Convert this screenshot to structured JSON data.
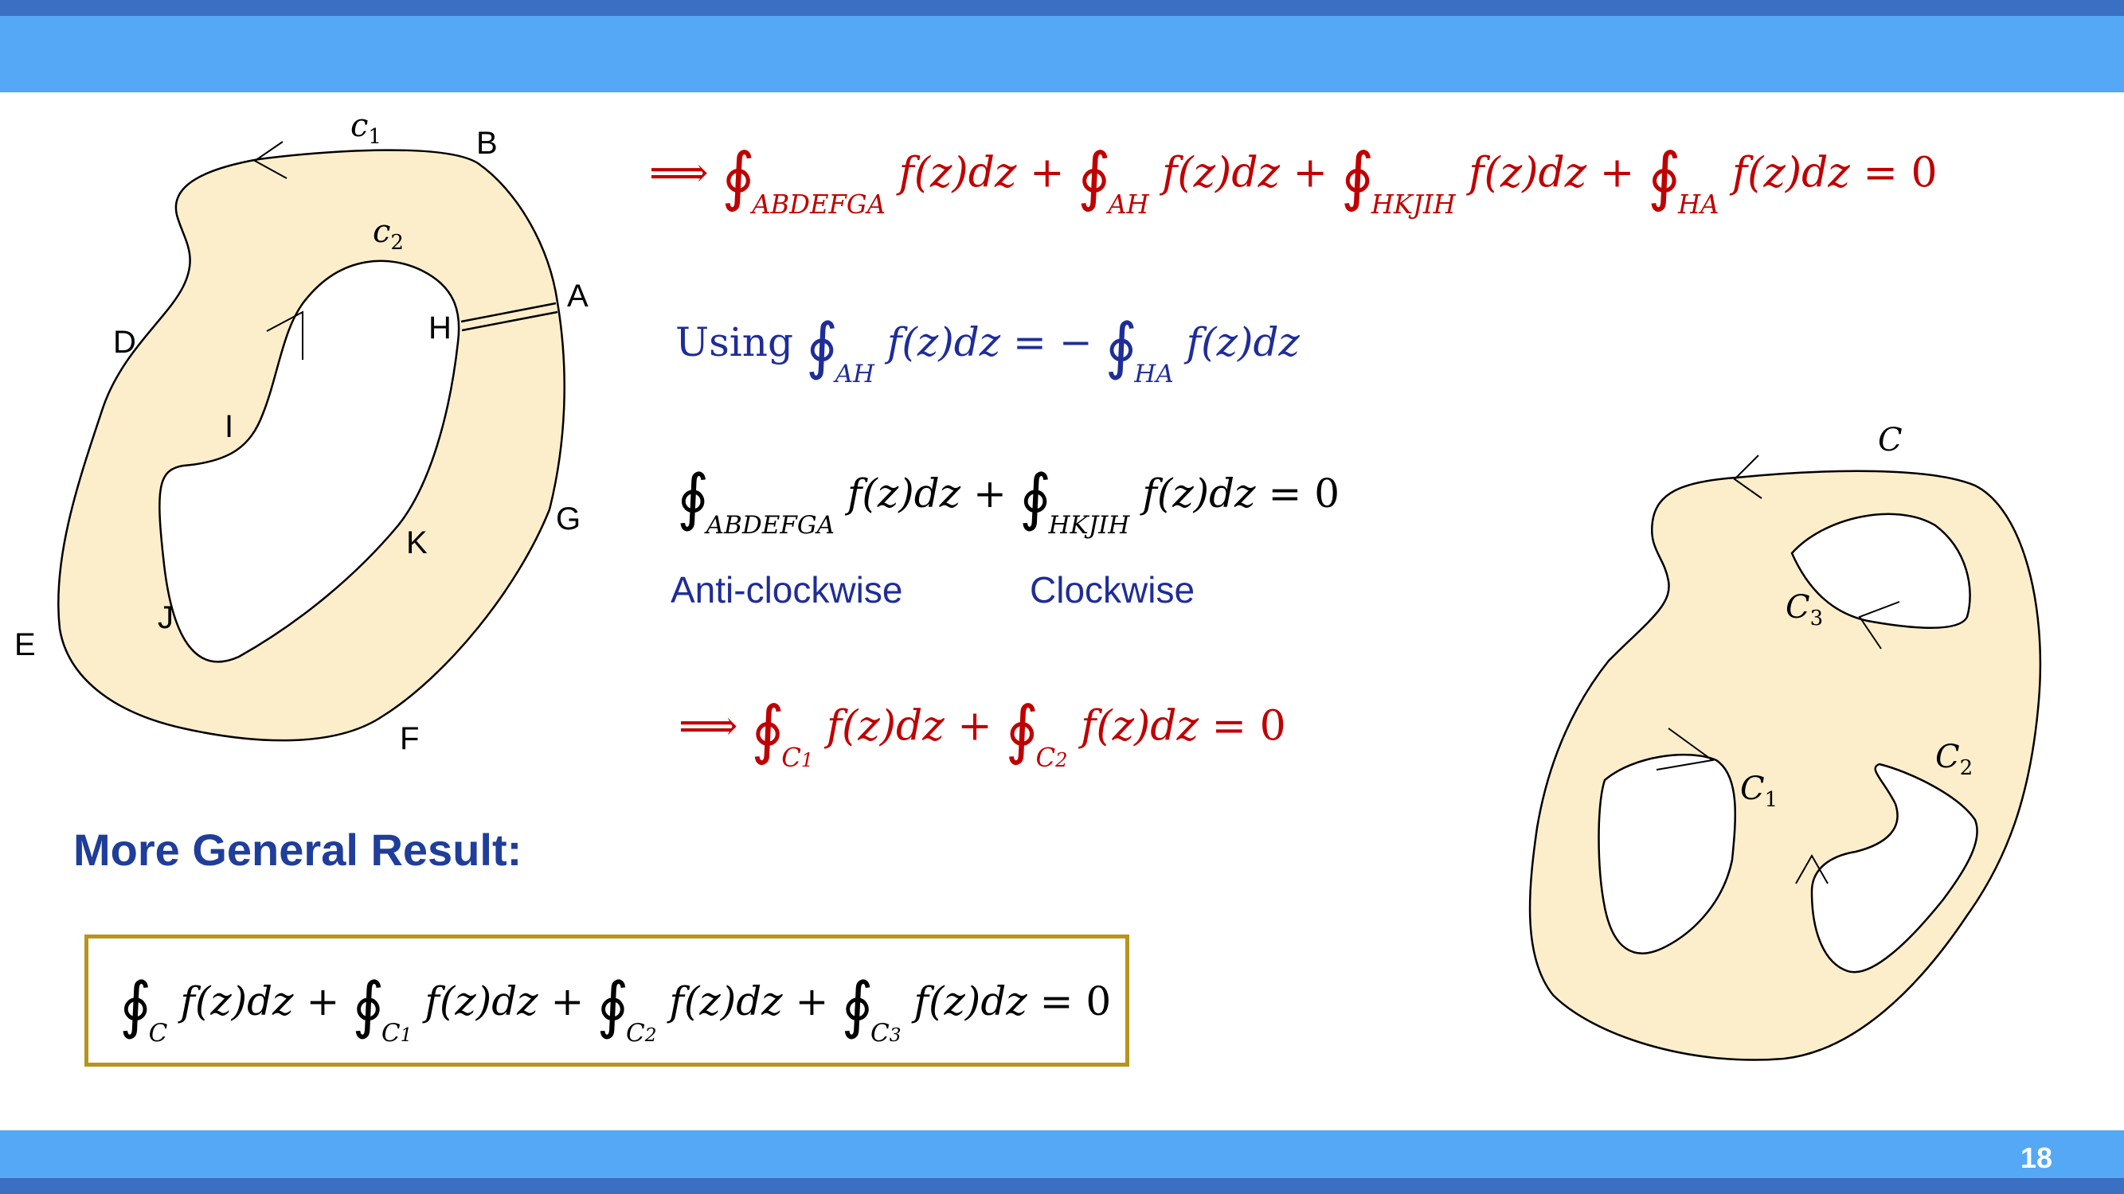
{
  "slide": {
    "page_number": "18"
  },
  "equations": {
    "eq1": {
      "arrow": "⟹",
      "t1_sub": "ABDEFGA",
      "t2_sub": "AH",
      "t3_sub": "HKJIH",
      "t4_sub": "HA",
      "integrand": "f(z)dz",
      "rhs": "= 0"
    },
    "using": {
      "word": "Using",
      "lhs_sub": "AH",
      "rhs_sub": "HA",
      "integrand": "f(z)dz",
      "eq": "= −"
    },
    "eq2": {
      "t1_sub": "ABDEFGA",
      "t2_sub": "HKJIH",
      "integrand": "f(z)dz",
      "rhs": "= 0"
    },
    "eq3": {
      "arrow": "⟹",
      "t1_sub": "1",
      "t2_sub": "2",
      "integrand": "f(z)dz",
      "rhs": "= 0"
    },
    "general": {
      "integrand": "f(z)dz",
      "rhs": "= 0",
      "subs": [
        "C",
        "1",
        "2",
        "3"
      ]
    }
  },
  "notes": {
    "anticlockwise": "Anti-clockwise",
    "clockwise": "Clockwise"
  },
  "heading": "More General Result:",
  "diagram_left": {
    "labels": {
      "B": "B",
      "A": "A",
      "H": "H",
      "D": "D",
      "I": "I",
      "G": "G",
      "K": "K",
      "J": "J",
      "E": "E",
      "F": "F"
    },
    "c_outer": "c",
    "c_outer_sub": "1",
    "c_inner": "c",
    "c_inner_sub": "2"
  },
  "diagram_right": {
    "C": "C",
    "c1": "C",
    "c1_sub": "1",
    "c2": "C",
    "c2_sub": "2",
    "c3": "C",
    "c3_sub": "3"
  },
  "colors": {
    "bar": "#55a8f5",
    "bar_edge": "#3b6fc4",
    "fill": "#fdeecb",
    "red": "#c00000",
    "blue": "#1f2d98",
    "box_border": "#b8941e"
  }
}
